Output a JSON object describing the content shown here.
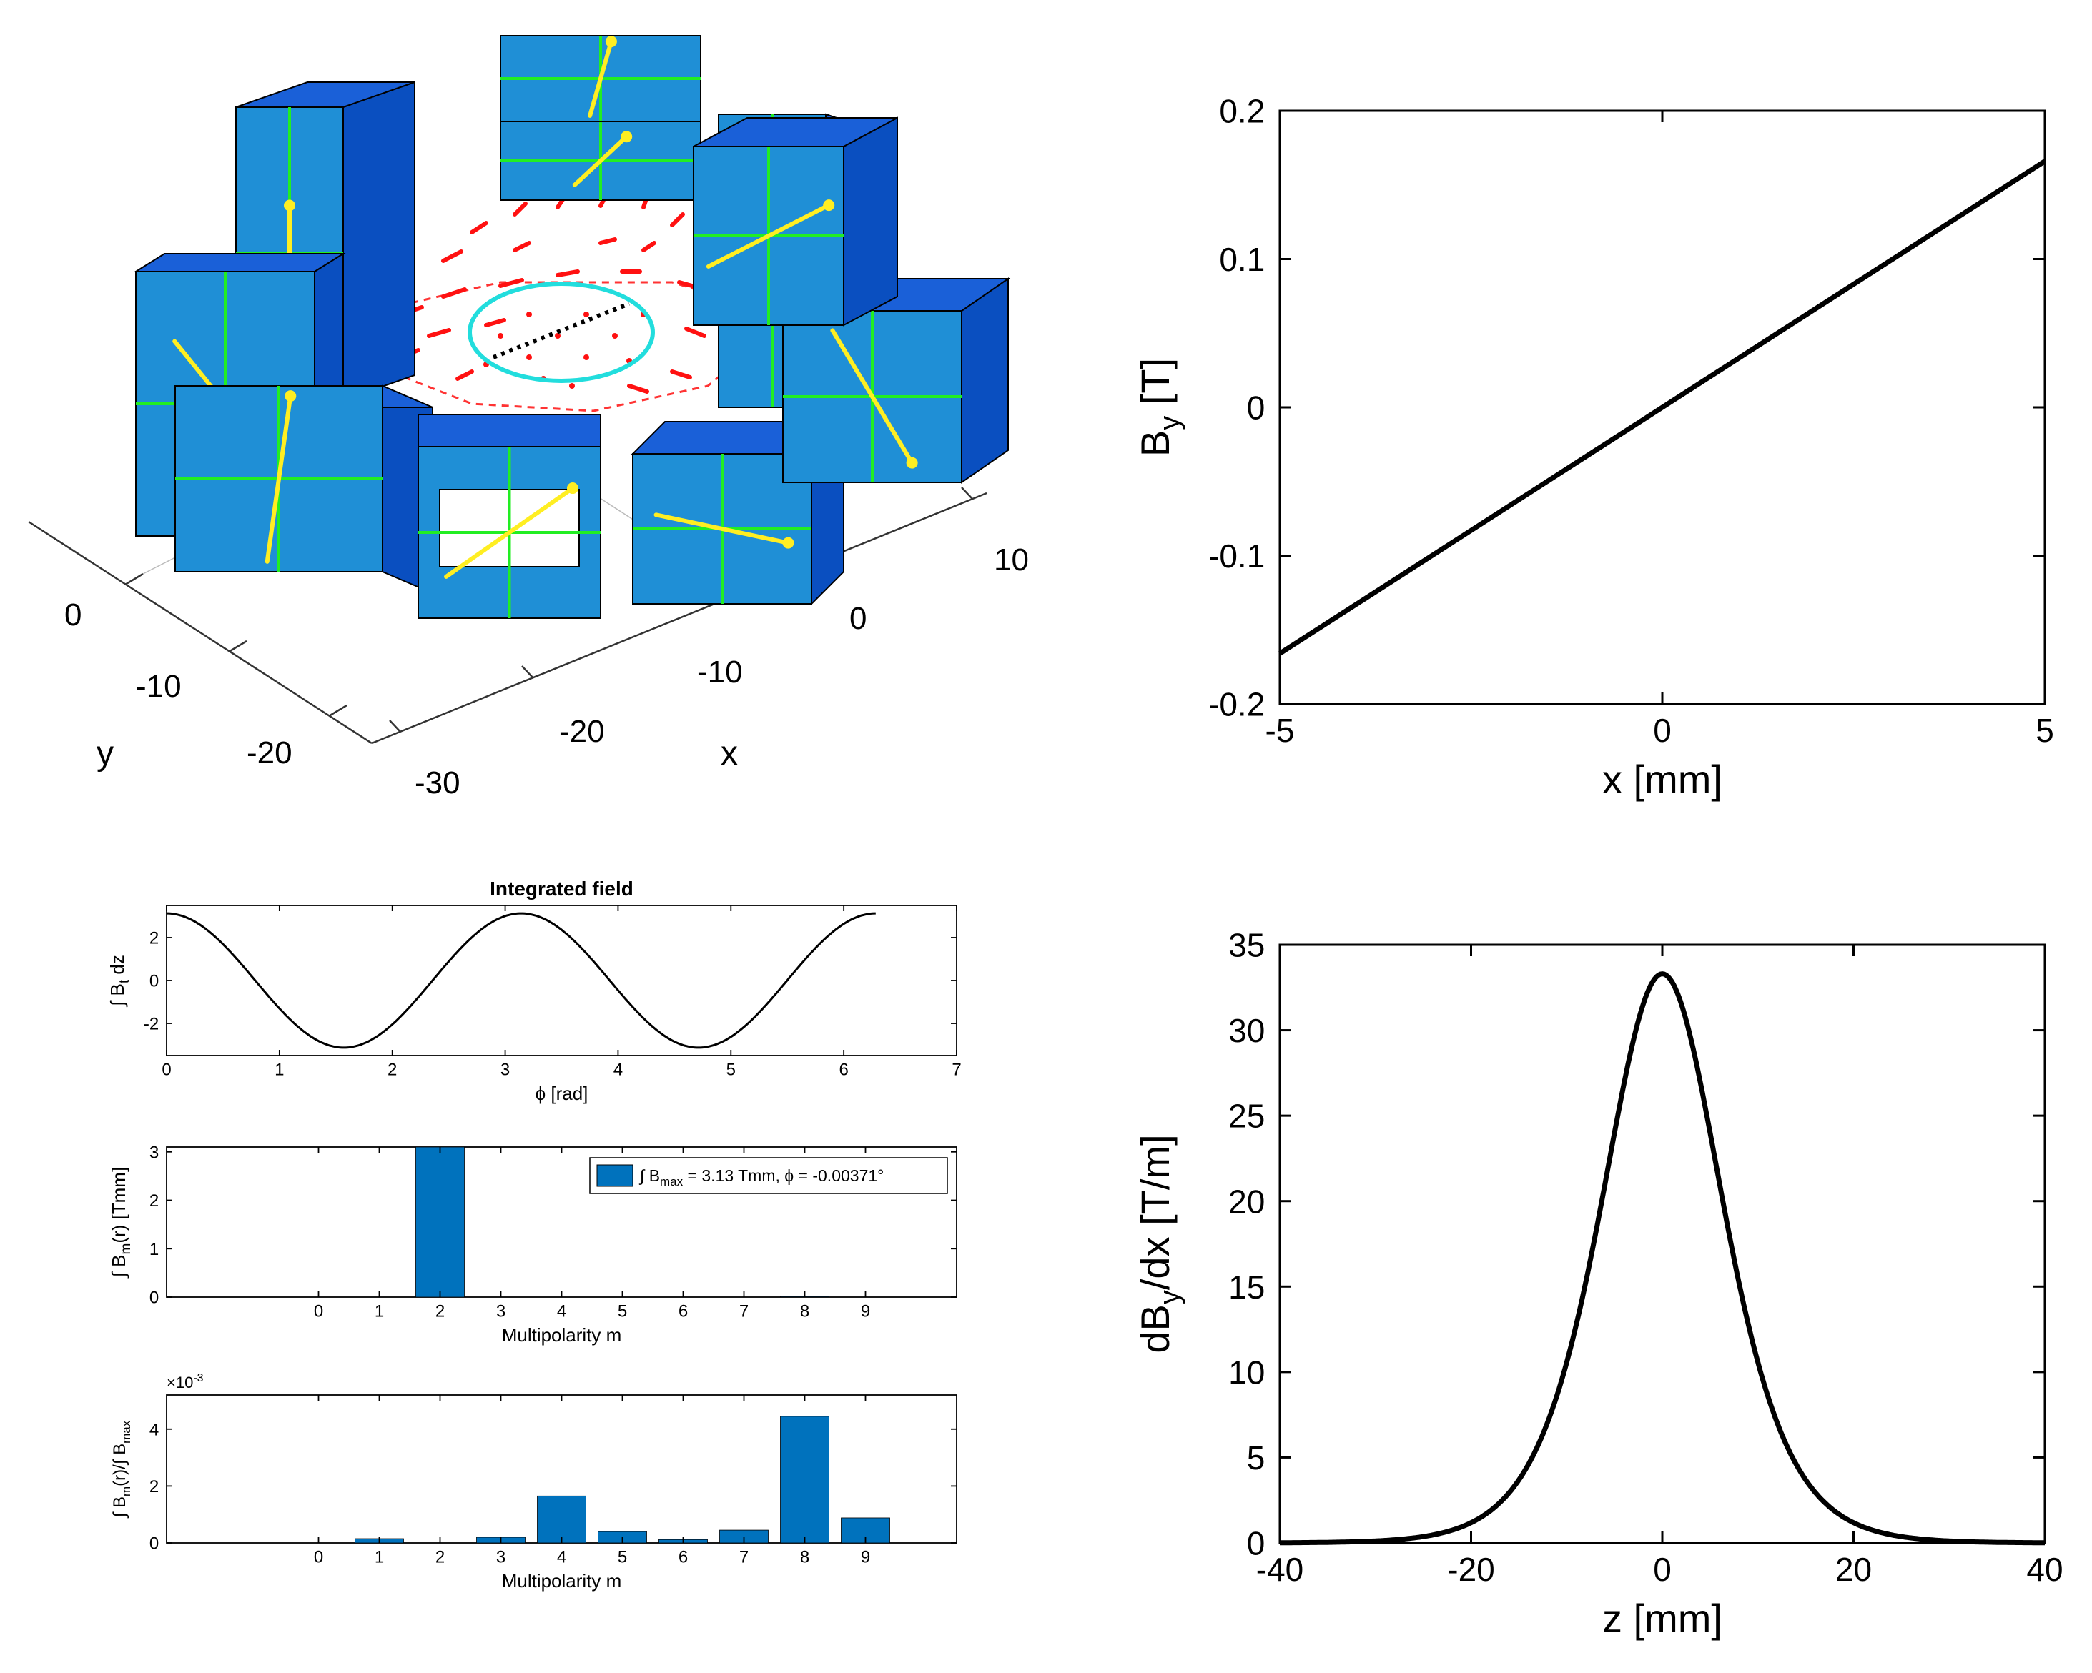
{
  "figure3d": {
    "x_label": "x",
    "y_label": "y",
    "x_ticks": [
      "10",
      "0",
      "-10",
      "-20",
      "-30"
    ],
    "y_ticks": [
      "0",
      "-10",
      "-20"
    ],
    "colors": {
      "magnet_face_light": "#1f8fd6",
      "magnet_face_dark": "#0a4fc0",
      "green_lines": "#22ee22",
      "arrows": "#ffee22",
      "field_arrows": "#ff1111",
      "circle": "#22dddd"
    }
  },
  "chart_data": [
    {
      "id": "by_vs_x",
      "type": "line",
      "title": "",
      "xlabel": "x [mm]",
      "ylabel_main": "B",
      "ylabel_sub": "y",
      "ylabel_tail": " [T]",
      "xlim": [
        -5,
        5
      ],
      "ylim": [
        -0.2,
        0.2
      ],
      "xticks": [
        -5,
        0,
        5
      ],
      "xtick_labels": [
        "-5",
        "0",
        "5"
      ],
      "yticks": [
        -0.2,
        -0.1,
        0,
        0.1,
        0.2
      ],
      "ytick_labels": [
        "-0.2",
        "-0.1",
        "0",
        "0.1",
        "0.2"
      ],
      "x": [
        -5,
        5
      ],
      "y": [
        -0.166,
        0.166
      ],
      "color": "#000000"
    },
    {
      "id": "integrated_field",
      "type": "line",
      "title": "Integrated field",
      "xlabel": "ϕ [rad]",
      "ylabel_pre": "∫ B",
      "ylabel_sub": "t",
      "ylabel_tail": " dz",
      "xlim": [
        0,
        7
      ],
      "ylim": [
        -3.5,
        3.5
      ],
      "xticks": [
        0,
        1,
        2,
        3,
        4,
        5,
        6,
        7
      ],
      "xtick_labels": [
        "0",
        "1",
        "2",
        "3",
        "4",
        "5",
        "6",
        "7"
      ],
      "yticks": [
        -2,
        0,
        2
      ],
      "ytick_labels": [
        "-2",
        "0",
        "2"
      ],
      "function": "amplitude*cos(2*phi)",
      "amplitude": 3.13,
      "x_range": [
        0,
        6.2832
      ],
      "color": "#000000"
    },
    {
      "id": "multipoles_abs",
      "type": "bar",
      "xlabel": "Multipolarity m",
      "ylabel_pre": "∫ B",
      "ylabel_sub": "m",
      "ylabel_tail": "(r) [Tmm]",
      "categories": [
        "0",
        "1",
        "2",
        "3",
        "4",
        "5",
        "6",
        "7",
        "8",
        "9"
      ],
      "values": [
        0,
        0,
        3.13,
        0,
        0,
        0,
        0,
        0,
        0.014,
        0
      ],
      "ylim": [
        0,
        3.1
      ],
      "yticks": [
        0,
        1,
        2,
        3
      ],
      "ytick_labels": [
        "0",
        "1",
        "2",
        "3"
      ],
      "xlim": [
        -1.5,
        11.5
      ],
      "legend_pre": "∫ B",
      "legend_sub": "max",
      "legend_tail": " = 3.13 Tmm,  ϕ = -0.00371°",
      "legend_position": "top-right",
      "color": "#0072bd"
    },
    {
      "id": "multipoles_rel",
      "type": "bar",
      "xlabel": "Multipolarity m",
      "ylabel_pre": "∫ B",
      "ylabel_sub": "m",
      "ylabel_mid": "(r)/∫ B",
      "ylabel_sub2": "max",
      "exponent_label": "×10",
      "exponent_value": "-3",
      "categories": [
        "0",
        "1",
        "2",
        "3",
        "4",
        "5",
        "6",
        "7",
        "8",
        "9"
      ],
      "values": [
        0,
        0.15,
        0,
        0.2,
        1.65,
        0.4,
        0.12,
        0.45,
        4.45,
        0.88
      ],
      "ylim": [
        0,
        5.2
      ],
      "yticks": [
        0,
        2,
        4
      ],
      "ytick_labels": [
        "0",
        "2",
        "4"
      ],
      "xlim": [
        -1.5,
        11.5
      ],
      "color": "#0072bd"
    },
    {
      "id": "gradient_vs_z",
      "type": "line",
      "xlabel": "z [mm]",
      "ylabel_pre": "dB",
      "ylabel_sub": "y",
      "ylabel_tail": "/dx [T/m]",
      "xlim": [
        -40,
        40
      ],
      "ylim": [
        0,
        35
      ],
      "xticks": [
        -40,
        -20,
        0,
        20,
        40
      ],
      "xtick_labels": [
        "-40",
        "-20",
        "0",
        "20",
        "40"
      ],
      "yticks": [
        0,
        5,
        10,
        15,
        20,
        25,
        30,
        35
      ],
      "ytick_labels": [
        "0",
        "5",
        "10",
        "15",
        "20",
        "25",
        "30",
        "35"
      ],
      "function": "peak/cosh(z/width)^2",
      "peak": 33.3,
      "width": 8.5,
      "color": "#000000"
    }
  ]
}
